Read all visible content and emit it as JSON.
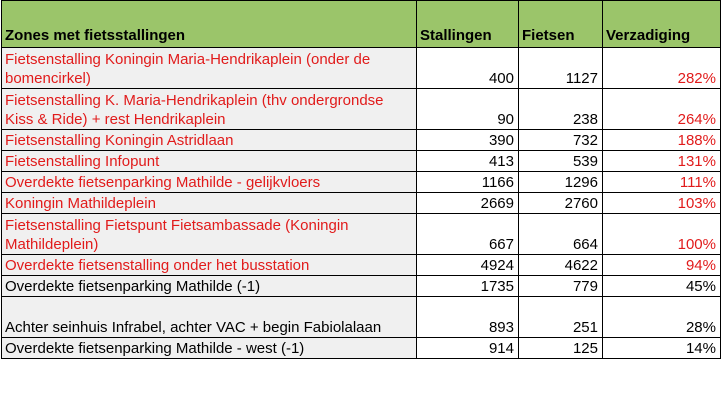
{
  "table": {
    "headers": [
      "Zones met fietsstallingen",
      "Stallingen",
      "Fietsen",
      "Verzadiging"
    ],
    "rows": [
      {
        "zone": "Fietsenstalling Koningin Maria-Hendrikaplein (onder de bomencirkel)",
        "stallingen": "400",
        "fietsen": "1127",
        "verzadiging": "282%",
        "color": "red"
      },
      {
        "zone": "Fietsenstalling K. Maria-Hendrikaplein (thv ondergrondse Kiss & Ride) + rest Hendrikaplein",
        "stallingen": "90",
        "fietsen": "238",
        "verzadiging": "264%",
        "color": "red"
      },
      {
        "zone": "Fietsenstalling Koningin Astridlaan",
        "stallingen": "390",
        "fietsen": "732",
        "verzadiging": "188%",
        "color": "red"
      },
      {
        "zone": "Fietsenstalling Infopunt",
        "stallingen": "413",
        "fietsen": "539",
        "verzadiging": "131%",
        "color": "red"
      },
      {
        "zone": "Overdekte fietsenparking Mathilde - gelijkvloers",
        "stallingen": "1166",
        "fietsen": "1296",
        "verzadiging": "111%",
        "color": "red"
      },
      {
        "zone": "Koningin Mathildeplein",
        "stallingen": "2669",
        "fietsen": "2760",
        "verzadiging": "103%",
        "color": "red"
      },
      {
        "zone": "Fietsenstalling Fietspunt Fietsambassade (Koningin Mathildeplein)",
        "stallingen": "667",
        "fietsen": "664",
        "verzadiging": "100%",
        "color": "red"
      },
      {
        "zone": "Overdekte fietsenstalling onder het busstation",
        "stallingen": "4924",
        "fietsen": "4622",
        "verzadiging": "94%",
        "color": "red"
      },
      {
        "zone": "Overdekte fietsenparking Mathilde (-1)",
        "stallingen": "1735",
        "fietsen": "779",
        "verzadiging": "45%",
        "color": "black"
      },
      {
        "zone": "Achter seinhuis Infrabel, achter VAC + begin Fabiolalaan",
        "stallingen": "893",
        "fietsen": "251",
        "verzadiging": "28%",
        "color": "black"
      },
      {
        "zone": "Overdekte fietsenparking Mathilde - west (-1)",
        "stallingen": "914",
        "fietsen": "125",
        "verzadiging": "14%",
        "color": "black"
      }
    ]
  },
  "colors": {
    "header_bg": "#9bc56a",
    "zone_bg": "#f0f0f0",
    "highlight_text": "#e11b1b",
    "normal_text": "#000000"
  }
}
